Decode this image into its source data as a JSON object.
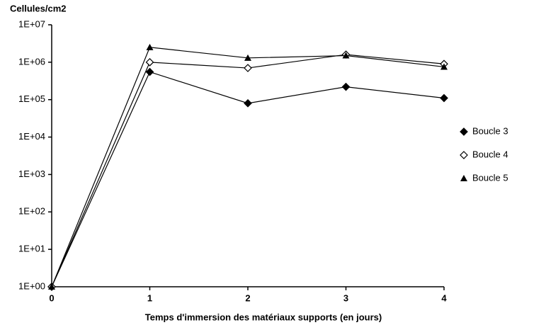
{
  "chart_data": {
    "type": "line",
    "y_label": "Cellules/cm2",
    "x_label": "Temps d'immersion des matériaux supports (en jours)",
    "x": [
      0,
      1,
      2,
      3,
      4
    ],
    "xlim": [
      0,
      4
    ],
    "xticks": [
      0,
      1,
      2,
      3,
      4
    ],
    "ylim": [
      1,
      10000000
    ],
    "log_y": true,
    "yticks": [
      {
        "value": 1,
        "label": "1E+00"
      },
      {
        "value": 10,
        "label": "1E+01"
      },
      {
        "value": 100,
        "label": "1E+02"
      },
      {
        "value": 1000,
        "label": "1E+03"
      },
      {
        "value": 10000,
        "label": "1E+04"
      },
      {
        "value": 100000,
        "label": "1E+05"
      },
      {
        "value": 1000000,
        "label": "1E+06"
      },
      {
        "value": 10000000,
        "label": "1E+07"
      }
    ],
    "legend": "right",
    "series": [
      {
        "name": "Boucle 3",
        "color": "#000000",
        "marker": "diamond-filled",
        "values": [
          1,
          550000,
          80000,
          220000,
          110000
        ]
      },
      {
        "name": "Boucle 4",
        "color": "#000000",
        "marker": "diamond-open",
        "values": [
          1,
          1000000,
          700000,
          1600000,
          900000
        ]
      },
      {
        "name": "Boucle 5",
        "color": "#000000",
        "marker": "triangle",
        "values": [
          1,
          2500000,
          1300000,
          1500000,
          750000
        ]
      }
    ]
  }
}
